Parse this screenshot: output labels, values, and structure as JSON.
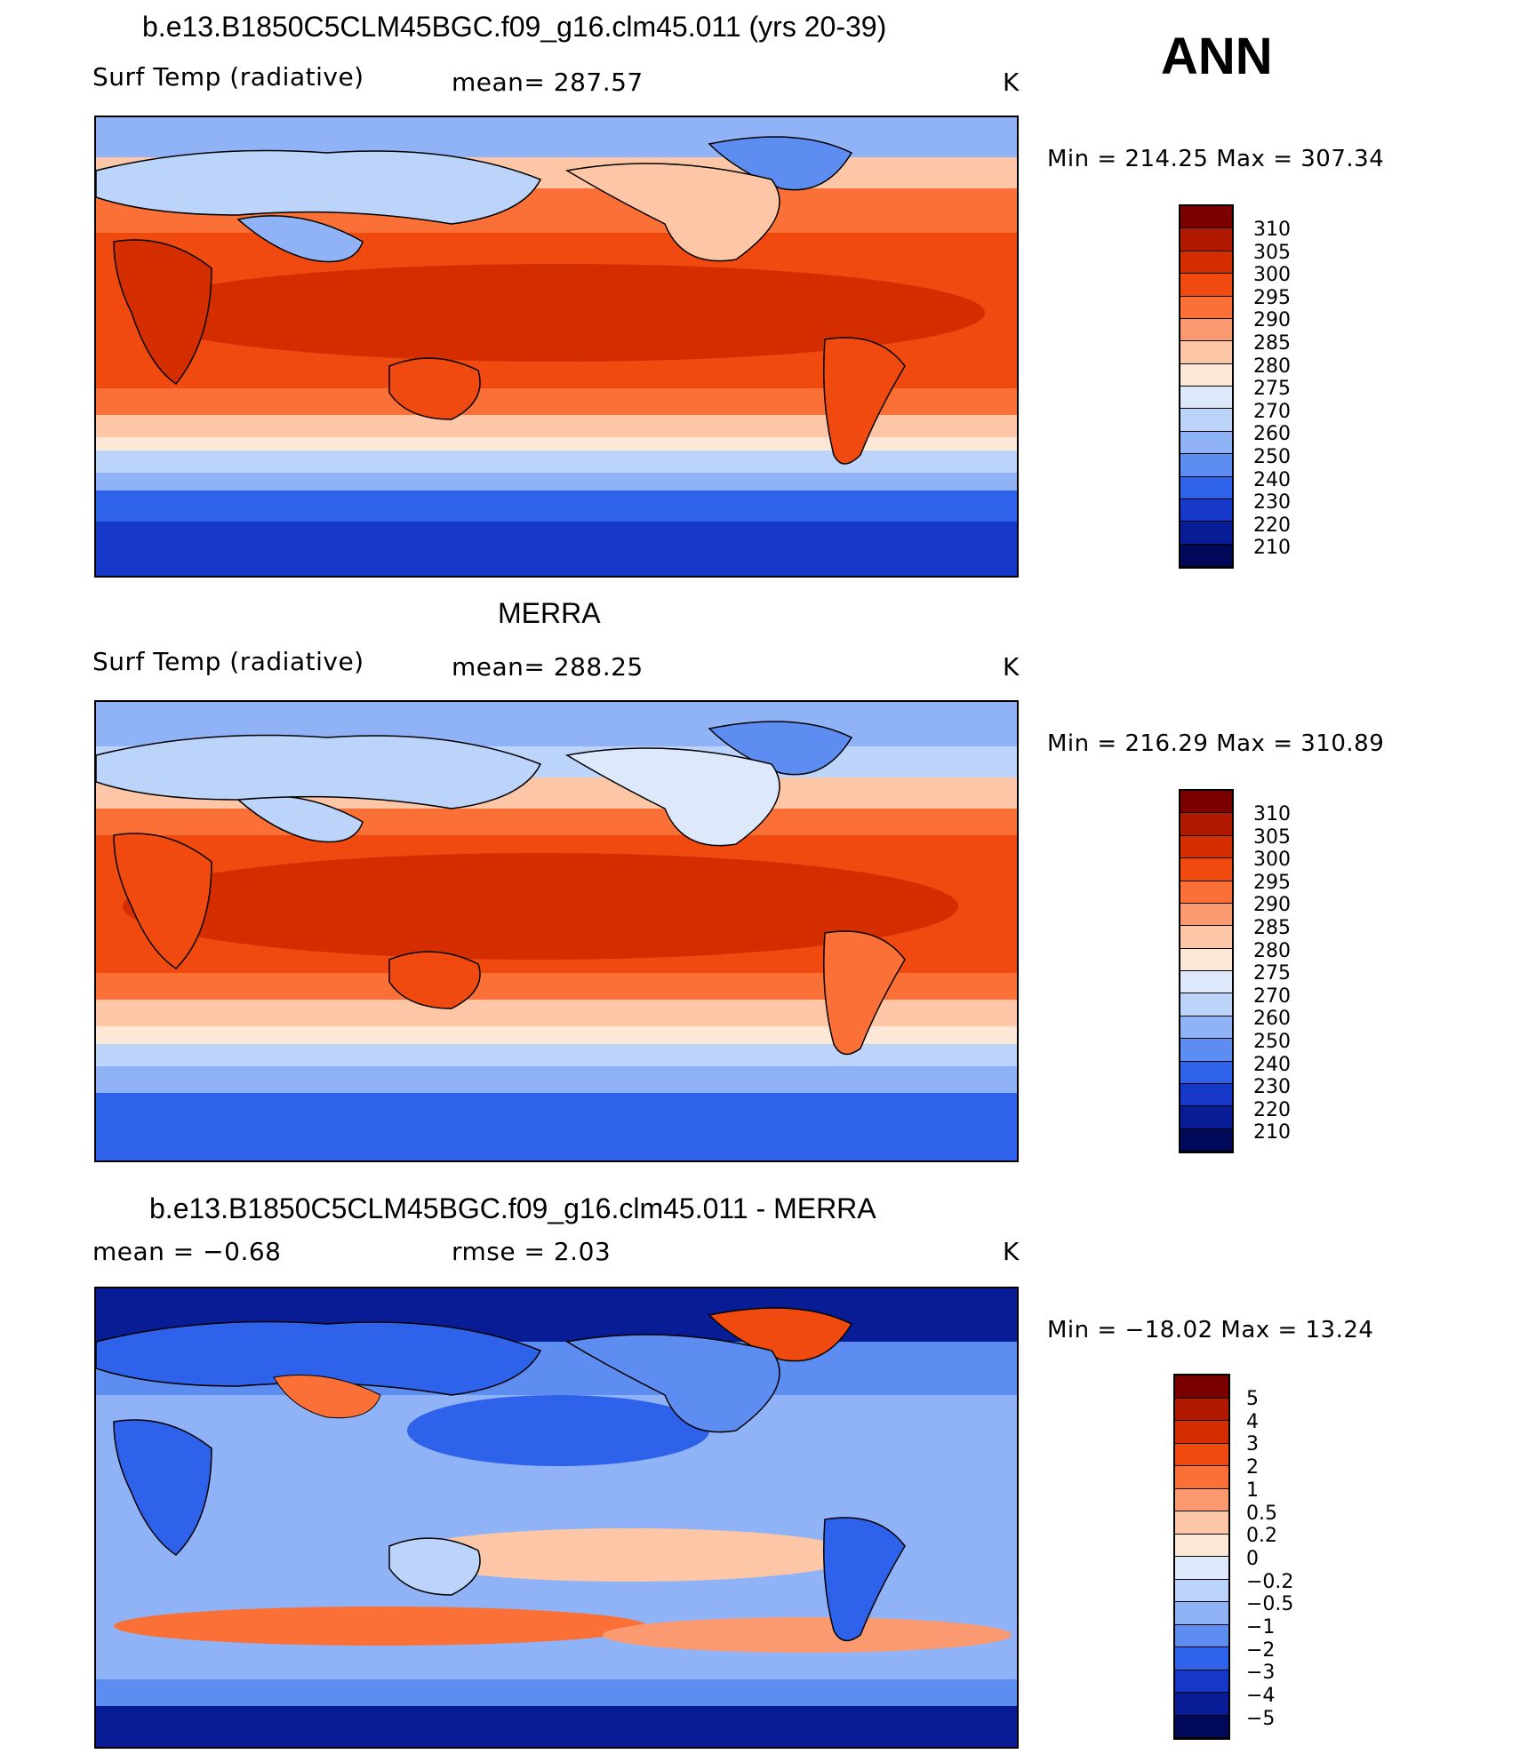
{
  "season": "ANN",
  "panels": [
    {
      "title": "b.e13.B1850C5CLM45BGC.f09_g16.clm45.011 (yrs 20-39)",
      "left_label": "Surf Temp (radiative)",
      "center_label": "mean= 287.57",
      "units": "K",
      "minmax": "Min = 214.25 Max = 307.34",
      "map_alt": "Annual mean radiative surface temperature, model"
    },
    {
      "title": "MERRA",
      "left_label": "Surf Temp (radiative)",
      "center_label": "mean= 288.25",
      "units": "K",
      "minmax": "Min = 216.29 Max = 310.89",
      "map_alt": "Annual mean radiative surface temperature, MERRA"
    },
    {
      "title": "b.e13.B1850C5CLM45BGC.f09_g16.clm45.011 - MERRA",
      "left_label": "mean = −0.68",
      "center_label": "rmse = 2.03",
      "units": "K",
      "minmax": "Min = −18.02 Max = 13.24",
      "map_alt": "Difference model minus MERRA"
    }
  ],
  "colorbars": {
    "temperature": {
      "labels": [
        "310",
        "305",
        "300",
        "295",
        "290",
        "285",
        "280",
        "275",
        "270",
        "260",
        "250",
        "240",
        "230",
        "220",
        "210"
      ],
      "colors": [
        "#7a0000",
        "#b01800",
        "#d42e00",
        "#f04a10",
        "#fa7036",
        "#fb9a70",
        "#fdc6a6",
        "#fde8d8",
        "#dde9fb",
        "#bcd3fa",
        "#8fb3f6",
        "#5d8df0",
        "#2f62eb",
        "#1538c8",
        "#081c96",
        "#00085a"
      ]
    },
    "difference": {
      "labels": [
        "5",
        "4",
        "3",
        "2",
        "1",
        "0.5",
        "0.2",
        "0",
        "−0.2",
        "−0.5",
        "−1",
        "−2",
        "−3",
        "−4",
        "−5"
      ],
      "colors": [
        "#7a0000",
        "#b01800",
        "#d42e00",
        "#f04a10",
        "#fa7036",
        "#fb9a70",
        "#fdc6a6",
        "#fde8d8",
        "#dde9fb",
        "#bcd3fa",
        "#8fb3f6",
        "#5d8df0",
        "#2f62eb",
        "#1538c8",
        "#081c96",
        "#00085a"
      ]
    }
  }
}
